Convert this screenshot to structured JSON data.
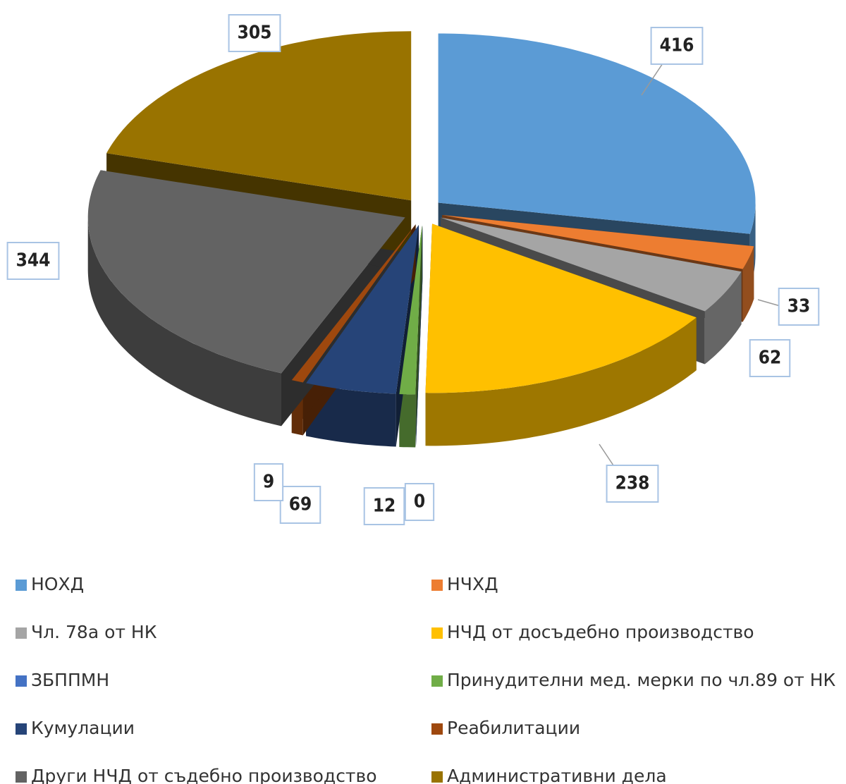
{
  "chart_data": {
    "type": "pie",
    "categories": [
      "НОХД",
      "НЧХД",
      "Чл. 78а от НК",
      "НЧД от досъдебно производство",
      "ЗБППМН",
      "Принудителни мед. мерки по чл.89 от НК",
      "Кумулации",
      "Реабилитации",
      "Други НЧД от съдебно производство",
      "Административни дела"
    ],
    "values": [
      416,
      33,
      62,
      238,
      0,
      12,
      69,
      9,
      344,
      305
    ],
    "colors": [
      "#5b9bd5",
      "#ed7d31",
      "#a5a5a5",
      "#ffc000",
      "#4472c4",
      "#70ad47",
      "#264478",
      "#9e480e",
      "#636363",
      "#997300"
    ],
    "legend": "bottom"
  }
}
